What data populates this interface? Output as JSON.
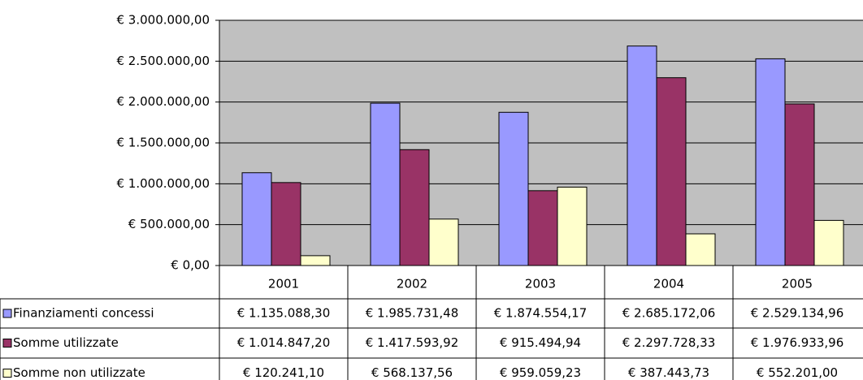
{
  "chart_data": {
    "type": "bar",
    "categories": [
      "2001",
      "2002",
      "2003",
      "2004",
      "2005"
    ],
    "series": [
      {
        "name": "Finanziamenti concessi",
        "color": "#9999ff",
        "values": [
          1135088.3,
          1985731.48,
          1874554.17,
          2685172.06,
          2529134.96
        ],
        "value_labels": [
          "€ 1.135.088,30",
          "€ 1.985.731,48",
          "€ 1.874.554,17",
          "€ 2.685.172,06",
          "€ 2.529.134,96"
        ]
      },
      {
        "name": "Somme utilizzate",
        "color": "#993366",
        "values": [
          1014847.2,
          1417593.92,
          915494.94,
          2297728.33,
          1976933.96
        ],
        "value_labels": [
          "€ 1.014.847,20",
          "€ 1.417.593,92",
          "€ 915.494,94",
          "€ 2.297.728,33",
          "€ 1.976.933,96"
        ]
      },
      {
        "name": "Somme non utilizzate",
        "color": "#ffffcc",
        "values": [
          120241.1,
          568137.56,
          959059.23,
          387443.73,
          552201.0
        ],
        "value_labels": [
          "€ 120.241,10",
          "€ 568.137,56",
          "€ 959.059,23",
          "€ 387.443,73",
          "€ 552.201,00"
        ]
      }
    ],
    "ylim": [
      0,
      3000000
    ],
    "yticks": [
      {
        "value": 0,
        "label": "€ 0,00"
      },
      {
        "value": 500000,
        "label": "€ 500.000,00"
      },
      {
        "value": 1000000,
        "label": "€ 1.000.000,00"
      },
      {
        "value": 1500000,
        "label": "€ 1.500.000,00"
      },
      {
        "value": 2000000,
        "label": "€ 2.000.000,00"
      },
      {
        "value": 2500000,
        "label": "€ 2.500.000,00"
      },
      {
        "value": 3000000,
        "label": "€ 3.000.000,00"
      }
    ],
    "grid": true,
    "plot_background": "#c0c0c0"
  }
}
